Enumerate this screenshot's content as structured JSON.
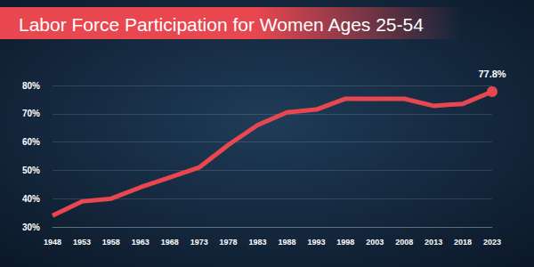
{
  "chart_data": {
    "type": "line",
    "title": "Labor Force Participation for Women Ages 25-54",
    "categories": [
      "1948",
      "1953",
      "1958",
      "1963",
      "1968",
      "1973",
      "1978",
      "1983",
      "1988",
      "1993",
      "1998",
      "2003",
      "2008",
      "2013",
      "2018",
      "2023"
    ],
    "values": [
      34,
      39,
      40,
      44,
      47.5,
      51,
      59,
      66,
      70.5,
      71.5,
      75.3,
      75.3,
      75.3,
      72.8,
      73.5,
      77.8
    ],
    "value_labels": [
      null,
      null,
      null,
      null,
      null,
      null,
      null,
      null,
      null,
      null,
      null,
      null,
      null,
      null,
      null,
      "77.8%"
    ],
    "data_labels": true,
    "marker": "circle",
    "color": "#e8474f",
    "ylim": [
      30,
      80
    ],
    "yticks": [
      {
        "value": 30,
        "label": "30%"
      },
      {
        "value": 40,
        "label": "40%"
      },
      {
        "value": 50,
        "label": "50%"
      },
      {
        "value": 60,
        "label": "60%"
      },
      {
        "value": 70,
        "label": "70%"
      },
      {
        "value": 80,
        "label": "80%"
      }
    ],
    "grid": true
  }
}
